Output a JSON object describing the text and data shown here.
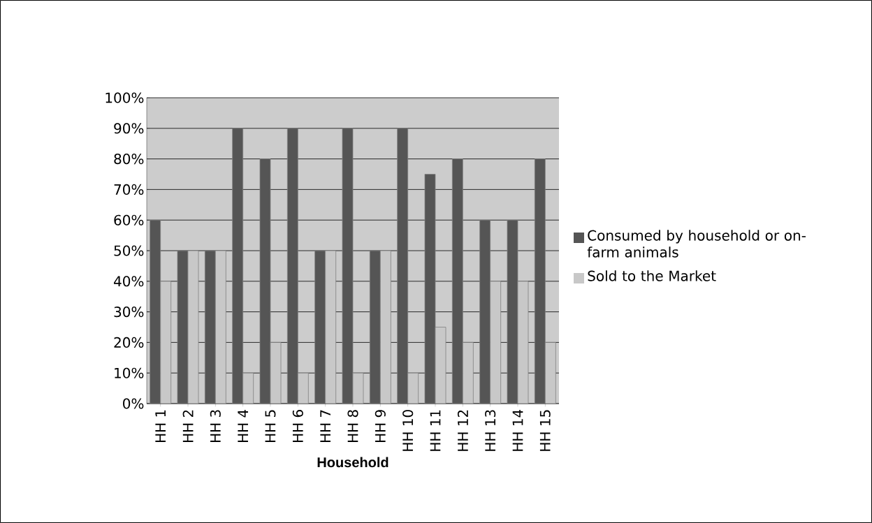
{
  "chart_data": {
    "type": "bar",
    "xlabel": "Household",
    "categories": [
      "HH 1",
      "HH 2",
      "HH 3",
      "HH 4",
      "HH 5",
      "HH 6",
      "HH 7",
      "HH 8",
      "HH 9",
      "HH 10",
      "HH 11",
      "HH 12",
      "HH 13",
      "HH 14",
      "HH 15"
    ],
    "series": [
      {
        "name": "Consumed by household or on-farm animals",
        "color": "#555555",
        "values": [
          60,
          50,
          50,
          90,
          80,
          90,
          50,
          90,
          50,
          90,
          75,
          80,
          60,
          60,
          80
        ]
      },
      {
        "name": "Sold to the Market",
        "color": "#c8c8c8",
        "values": [
          40,
          50,
          50,
          10,
          20,
          10,
          50,
          10,
          50,
          10,
          25,
          20,
          40,
          40,
          20
        ]
      }
    ],
    "ylim": [
      0,
      100
    ],
    "yticks": [
      {
        "value": 0,
        "label": "0%"
      },
      {
        "value": 10,
        "label": "10%"
      },
      {
        "value": 20,
        "label": "20%"
      },
      {
        "value": 30,
        "label": "30%"
      },
      {
        "value": 40,
        "label": "40%"
      },
      {
        "value": 50,
        "label": "50%"
      },
      {
        "value": 60,
        "label": "60%"
      },
      {
        "value": 70,
        "label": "70%"
      },
      {
        "value": 80,
        "label": "80%"
      },
      {
        "value": 90,
        "label": "90%"
      },
      {
        "value": 100,
        "label": "100%"
      }
    ],
    "grid": "y",
    "legend": "right"
  }
}
